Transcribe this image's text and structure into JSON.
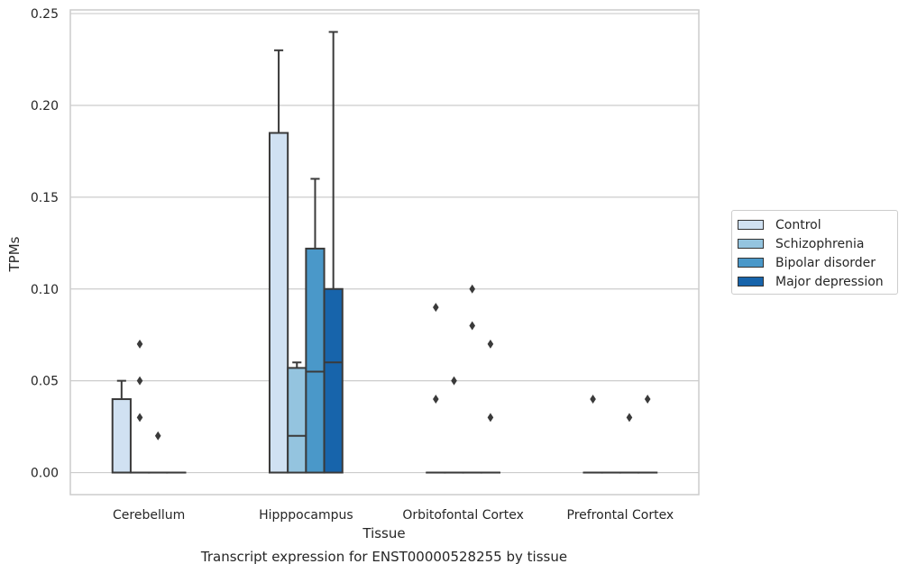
{
  "chart_data": {
    "type": "boxplot",
    "title": "Transcript expression for ENST00000528255 by tissue",
    "xlabel": "Tissue",
    "ylabel": "TPMs",
    "ylim": [
      -0.012,
      0.252
    ],
    "yticks": [
      "0.00",
      "0.05",
      "0.10",
      "0.15",
      "0.20",
      "0.25"
    ],
    "ytick_values": [
      0,
      0.05,
      0.1,
      0.15,
      0.2,
      0.25
    ],
    "categories": [
      "Cerebellum",
      "Hipppocampus",
      "Orbitofontal Cortex",
      "Prefrontal Cortex"
    ],
    "grid": "horizontal",
    "legend_position": "right",
    "series": [
      {
        "name": "Control",
        "color": "#d0e1f2",
        "boxes": [
          {
            "q1": 0,
            "median": 0,
            "q3": 0.04,
            "whisker_low": 0,
            "whisker_high": 0.05,
            "outliers": []
          },
          {
            "q1": 0,
            "median": 0,
            "q3": 0.185,
            "whisker_low": 0,
            "whisker_high": 0.23,
            "outliers": []
          },
          {
            "q1": 0,
            "median": 0,
            "q3": 0,
            "whisker_low": 0,
            "whisker_high": 0,
            "outliers": [
              0.09,
              0.04
            ]
          },
          {
            "q1": 0,
            "median": 0,
            "q3": 0,
            "whisker_low": 0,
            "whisker_high": 0,
            "outliers": [
              0.04
            ]
          }
        ]
      },
      {
        "name": "Schizophrenia",
        "color": "#94c4df",
        "boxes": [
          {
            "q1": 0,
            "median": 0,
            "q3": 0,
            "whisker_low": 0,
            "whisker_high": 0,
            "outliers": [
              0.07,
              0.05,
              0.03
            ]
          },
          {
            "q1": 0,
            "median": 0.02,
            "q3": 0.057,
            "whisker_low": 0,
            "whisker_high": 0.06,
            "outliers": []
          },
          {
            "q1": 0,
            "median": 0,
            "q3": 0,
            "whisker_low": 0,
            "whisker_high": 0,
            "outliers": [
              0.05
            ]
          },
          {
            "q1": 0,
            "median": 0,
            "q3": 0,
            "whisker_low": 0,
            "whisker_high": 0,
            "outliers": []
          }
        ]
      },
      {
        "name": "Bipolar disorder",
        "color": "#4a98c9",
        "boxes": [
          {
            "q1": 0,
            "median": 0,
            "q3": 0,
            "whisker_low": 0,
            "whisker_high": 0,
            "outliers": [
              0.02
            ]
          },
          {
            "q1": 0,
            "median": 0.055,
            "q3": 0.122,
            "whisker_low": 0,
            "whisker_high": 0.16,
            "outliers": []
          },
          {
            "q1": 0,
            "median": 0,
            "q3": 0,
            "whisker_low": 0,
            "whisker_high": 0,
            "outliers": [
              0.1,
              0.08
            ]
          },
          {
            "q1": 0,
            "median": 0,
            "q3": 0,
            "whisker_low": 0,
            "whisker_high": 0,
            "outliers": [
              0.03
            ]
          }
        ]
      },
      {
        "name": "Major depression",
        "color": "#1764ab",
        "boxes": [
          {
            "q1": 0,
            "median": 0,
            "q3": 0,
            "whisker_low": 0,
            "whisker_high": 0,
            "outliers": []
          },
          {
            "q1": 0,
            "median": 0.06,
            "q3": 0.1,
            "whisker_low": 0,
            "whisker_high": 0.24,
            "outliers": []
          },
          {
            "q1": 0,
            "median": 0,
            "q3": 0,
            "whisker_low": 0,
            "whisker_high": 0,
            "outliers": [
              0.07,
              0.03
            ]
          },
          {
            "q1": 0,
            "median": 0,
            "q3": 0,
            "whisker_low": 0,
            "whisker_high": 0,
            "outliers": [
              0.04
            ]
          }
        ]
      }
    ]
  }
}
